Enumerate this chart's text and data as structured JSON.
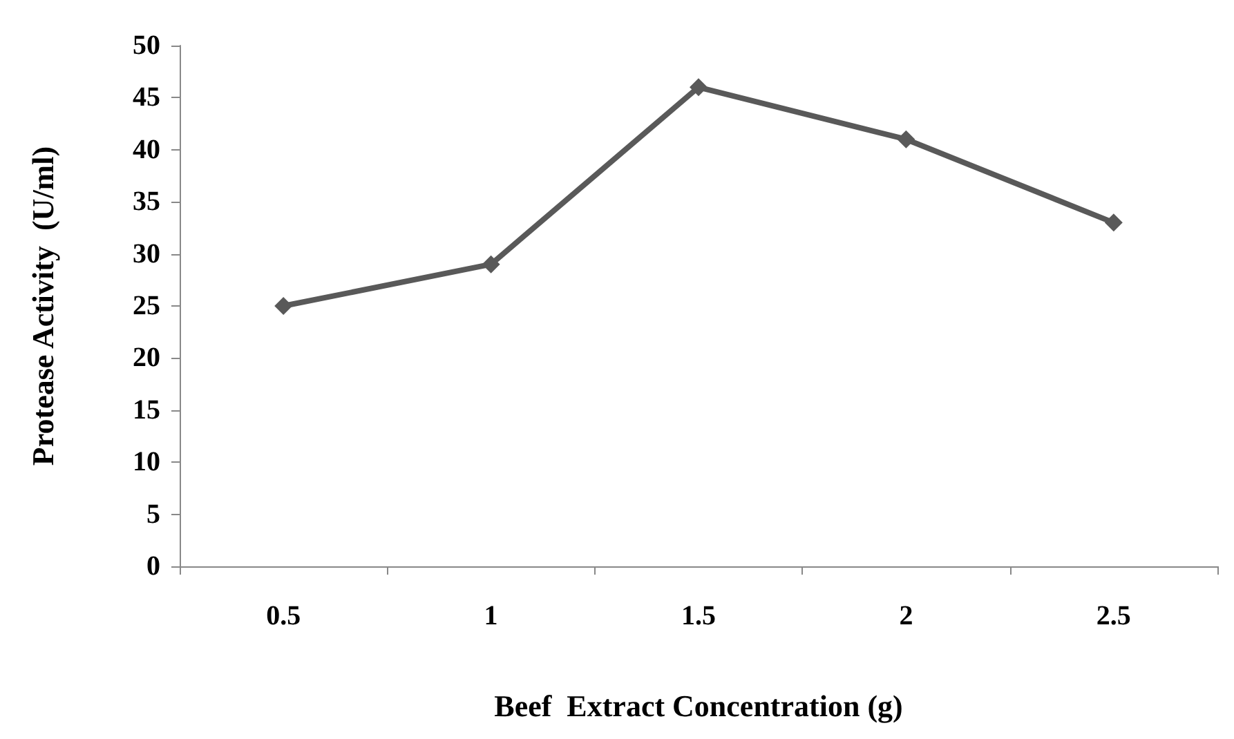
{
  "chart_data": {
    "type": "line",
    "xlabel": "Beef  Extract Concentration (g)",
    "ylabel": "Protease Activity  (U/ml)",
    "categories": [
      "0.5",
      "1",
      "1.5",
      "2",
      "2.5"
    ],
    "series": [
      {
        "color": "#595959",
        "values": [
          25,
          29,
          46,
          41,
          33
        ]
      }
    ],
    "ylim": [
      0,
      50
    ],
    "yticks": [
      0,
      5,
      10,
      15,
      20,
      25,
      30,
      35,
      40,
      45,
      50
    ],
    "marker": "diamond"
  }
}
